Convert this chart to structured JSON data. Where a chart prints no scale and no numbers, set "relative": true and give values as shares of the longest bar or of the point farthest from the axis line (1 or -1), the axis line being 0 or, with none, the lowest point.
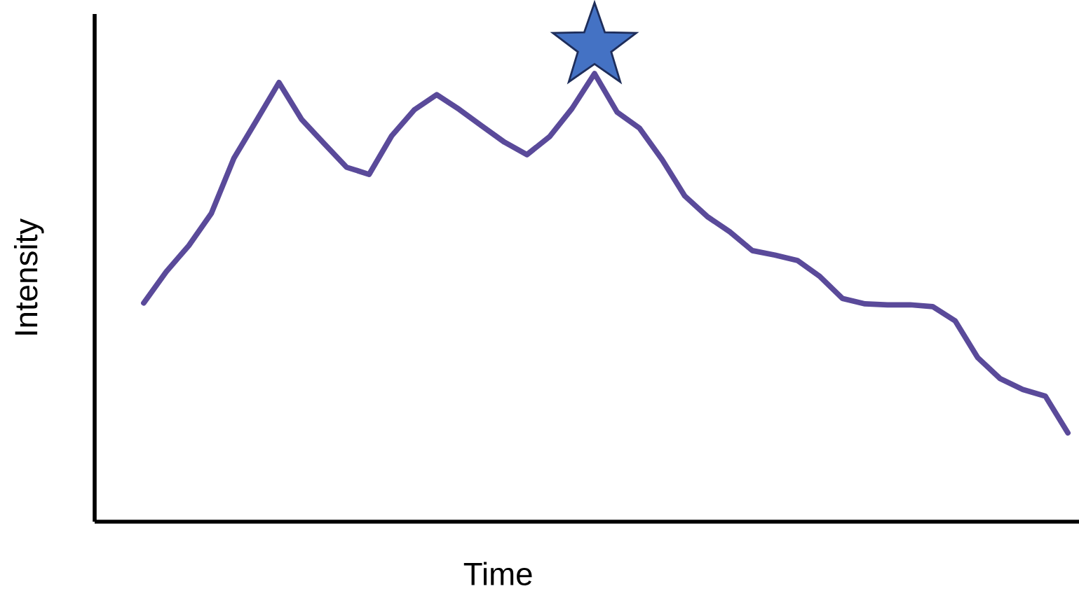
{
  "chart_data": {
    "type": "line",
    "xlabel": "Time",
    "ylabel": "Intensity",
    "relative": true,
    "marker": "none",
    "line_style": "solid",
    "categories": [
      null,
      null,
      null,
      null,
      null,
      null,
      null,
      null,
      null,
      null,
      null,
      null,
      null,
      null,
      null,
      null,
      null,
      null,
      null,
      null,
      null,
      null,
      null,
      null,
      null,
      null,
      null,
      null,
      null,
      null,
      null,
      null,
      null,
      null,
      null,
      null,
      null,
      null,
      null,
      null,
      null,
      null
    ],
    "series": [
      {
        "color": "#5a4a9a",
        "values": [
          0.488,
          0.558,
          0.616,
          0.688,
          0.811,
          0.895,
          0.98,
          0.898,
          0.844,
          0.791,
          0.775,
          0.861,
          0.919,
          0.953,
          0.92,
          0.883,
          0.847,
          0.819,
          0.859,
          0.922,
          1,
          0.914,
          0.878,
          0.808,
          0.727,
          0.681,
          0.647,
          0.605,
          0.595,
          0.583,
          0.547,
          0.498,
          0.486,
          0.484,
          0.484,
          0.48,
          0.448,
          0.366,
          0.319,
          0.295,
          0.28,
          0.198
        ]
      }
    ]
  }
}
